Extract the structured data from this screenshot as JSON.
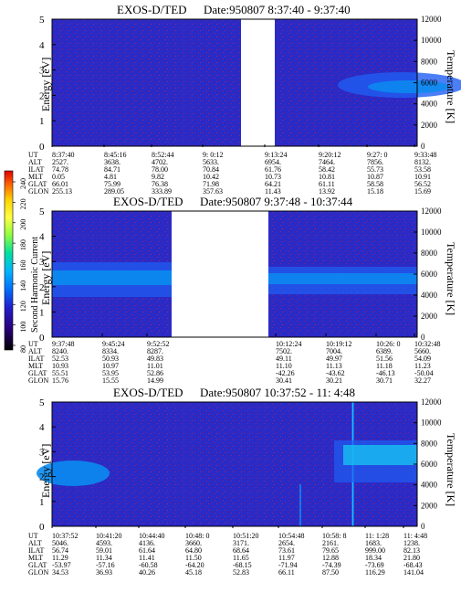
{
  "colors": {
    "background": "#2a2ac6",
    "gap": "#ffffff",
    "dots": "#a0206a",
    "band_core": "#0a8cf0",
    "band_edge": "#1f5ef2",
    "band_hot": "#17c8f0"
  },
  "colorbar": {
    "label": "Second Harmonic Current",
    "ticks": [
      "240",
      "220",
      "200",
      "180",
      "160",
      "140",
      "120",
      "100",
      "80"
    ],
    "colors": [
      "#e00000",
      "#ff6a00",
      "#ffd200",
      "#ffff40",
      "#8cff40",
      "#00e0a0",
      "#00b4ff",
      "#0070ff",
      "#2020d0",
      "#2a007a",
      "#000000"
    ]
  },
  "panels": [
    {
      "title": "EXOS-D/TED",
      "date_text": "Date:950807  8:37:40 - 9:37:40",
      "ylabel": "Energy [eV]",
      "y2label": "Temperature [K]",
      "yticks": [
        "0",
        "1",
        "2",
        "3",
        "4",
        "5"
      ],
      "y2ticks": [
        "0",
        "2000",
        "4000",
        "6000",
        "8000",
        "10000",
        "12000"
      ],
      "orbit_labels": [
        "UT",
        "ALT",
        "ILAT",
        "MLT",
        "GLAT",
        "GLON"
      ],
      "orbit_columns": [
        [
          "8:37:40",
          "2527.",
          "74.78",
          "0.05",
          "66.01",
          "255.13"
        ],
        [
          "8:45:16",
          "3638.",
          "84.71",
          "4.81",
          "75.99",
          "289.05"
        ],
        [
          "8:52:44",
          "4702.",
          "78.00",
          "9.82",
          "76.38",
          "333.89"
        ],
        [
          "9: 0:12",
          "5633.",
          "70.84",
          "10.42",
          "71.98",
          "357.63"
        ],
        [
          "9:13:24",
          "6954.",
          "61.76",
          "10.73",
          "64.21",
          "11.43"
        ],
        [
          "9:20:12",
          "7464.",
          "58.42",
          "10.81",
          "61.11",
          "13.92"
        ],
        [
          "9:27: 0",
          "7856.",
          "55.73",
          "10.87",
          "58.58",
          "15.18"
        ],
        [
          "9:33:48",
          "8132.",
          "53.58",
          "10.91",
          "56.52",
          "15.69"
        ]
      ]
    },
    {
      "title": "EXOS-D/TED",
      "date_text": "Date:950807  9:37:48 - 10:37:44",
      "ylabel": "Energy [eV]",
      "y2label": "Temperature [K]",
      "yticks": [
        "0",
        "1",
        "2",
        "3",
        "4",
        "5"
      ],
      "y2ticks": [
        "0",
        "2000",
        "4000",
        "6000",
        "8000",
        "10000",
        "12000"
      ],
      "orbit_labels": [
        "UT",
        "ALT",
        "ILAT",
        "MLT",
        "GLAT",
        "GLON"
      ],
      "orbit_columns": [
        [
          "9:37:48",
          "8240.",
          "52.53",
          "10.93",
          "55.51",
          "15.76"
        ],
        [
          "9:45:24",
          "8334.",
          "50.93",
          "10.97",
          "53.95",
          "15.55"
        ],
        [
          "9:52:52",
          "8287.",
          "49.83",
          "11.01",
          "52.86",
          "14.99"
        ],
        [
          "10:12:24",
          "7502.",
          "49.11",
          "11.10",
          "-42.26",
          "30.41"
        ],
        [
          "10:19:12",
          "7004.",
          "49.97",
          "11.13",
          "-43.62",
          "30.21"
        ],
        [
          "10:26: 0",
          "6389.",
          "51.56",
          "11.18",
          "-46.13",
          "30.71"
        ],
        [
          "10:32:48",
          "5660.",
          "54.09",
          "11.23",
          "-50.04",
          "32.27"
        ]
      ]
    },
    {
      "title": "EXOS-D/TED",
      "date_text": "Date:950807  10:37:52 - 11: 4:48",
      "ylabel": "Energy [eV]",
      "y2label": "Temperature [K]",
      "yticks": [
        "0",
        "1",
        "2",
        "3",
        "4",
        "5"
      ],
      "y2ticks": [
        "0",
        "2000",
        "4000",
        "6000",
        "8000",
        "10000",
        "12000"
      ],
      "orbit_labels": [
        "UT",
        "ALT",
        "ILAT",
        "MLT",
        "GLAT",
        "GLON"
      ],
      "orbit_columns": [
        [
          "10:37:52",
          "5046.",
          "56.74",
          "11.29",
          "-53.97",
          "34.53"
        ],
        [
          "10:41:20",
          "4593.",
          "59.01",
          "11.34",
          "-57.16",
          "36.93"
        ],
        [
          "10:44:40",
          "4136.",
          "61.64",
          "11.41",
          "-60.58",
          "40.26"
        ],
        [
          "10:48: 0",
          "3660.",
          "64.80",
          "11.50",
          "-64.20",
          "45.18"
        ],
        [
          "10:51:20",
          "3171.",
          "68.64",
          "11.65",
          "-68.15",
          "52.83"
        ],
        [
          "10:54:48",
          "2654.",
          "73.61",
          "11.97",
          "-71.94",
          "66.11"
        ],
        [
          "10:58: 8",
          "2161.",
          "79.65",
          "12.88",
          "-74.39",
          "87.50"
        ],
        [
          "11: 1:28",
          "1683.",
          "999.00",
          "18.34",
          "-73.69",
          "116.29"
        ],
        [
          "11: 4:48",
          "1238.",
          "82.13",
          "21.80",
          "-68.43",
          "141.04"
        ]
      ]
    }
  ]
}
